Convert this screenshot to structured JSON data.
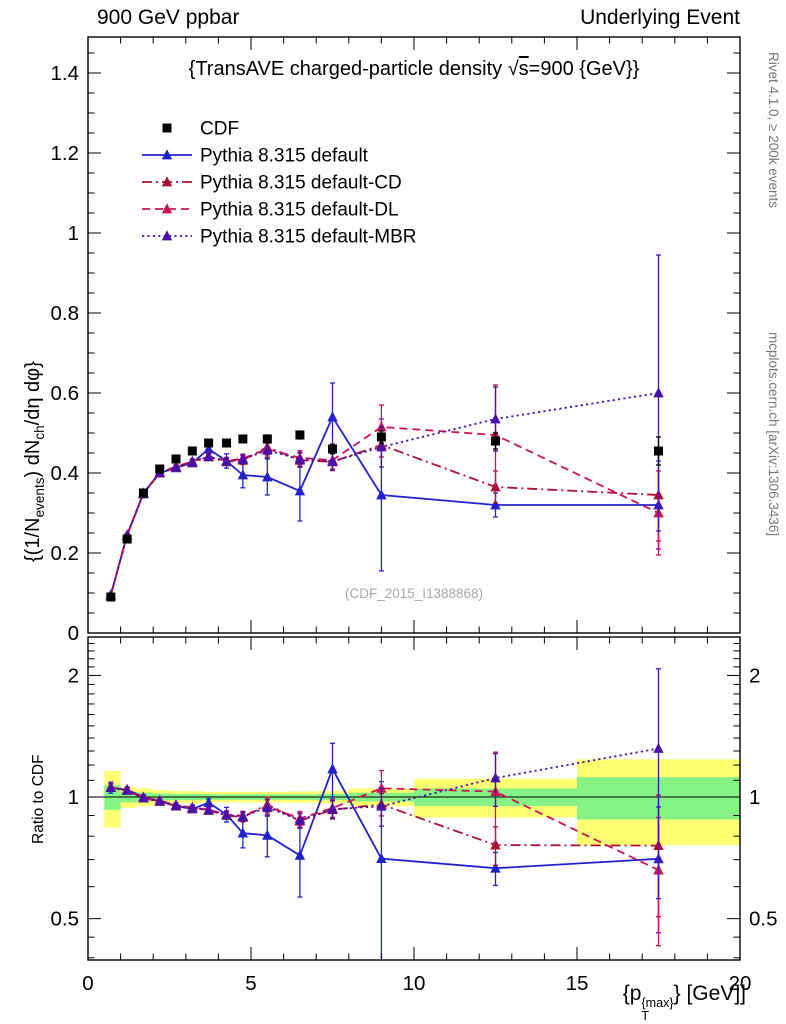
{
  "header": {
    "left": "900 GeV ppbar",
    "right": "Underlying Event"
  },
  "title": {
    "pre": "{TransAVE charged-particle density ",
    "sqrt": "√",
    "sqrt_arg": "s",
    "post": "=900 {GeV}}"
  },
  "y_axis_label": {
    "p1": "{(1/N",
    "sub1": "events",
    "p2": ") dN",
    "sub2": "ch",
    "p3": "/dη dφ}"
  },
  "x_axis_label": {
    "p1": "{p",
    "sub1": "T",
    "sup1": "{max}",
    "p2": "} [GeV]]"
  },
  "ratio_axis_label": "Ratio to CDF",
  "side_notes": {
    "top": "Rivet 4.1.0, ≥ 200k events",
    "bottom": "mcplots.cern.ch [arXiv:1306.3436]"
  },
  "watermark": "(CDF_2015_I1388868)",
  "chart_data": {
    "type": "line",
    "title": "{TransAVE charged-particle density √s=900 {GeV}}",
    "xlabel": "{p_T^{max}} [GeV]",
    "ylabel": "{(1/N_events) dN_ch/dη dφ}",
    "legend_position": "top-left-inside",
    "grid": false,
    "x": [
      0.7,
      1.2,
      1.7,
      2.2,
      2.7,
      3.2,
      3.7,
      4.25,
      4.75,
      5.5,
      6.5,
      7.5,
      9,
      12.5,
      17.5
    ],
    "xlim": [
      0,
      20
    ],
    "main_ylim": [
      0,
      1.49
    ],
    "ratio_ylim": [
      0.395,
      2.49
    ],
    "x_ticks": {
      "major": [
        0,
        5,
        10,
        15,
        20
      ],
      "labels": [
        "0",
        "5",
        "10",
        "15",
        "20"
      ],
      "minor_step": 1
    },
    "y_ticks": {
      "major": [
        0,
        0.2,
        0.4,
        0.6,
        0.8,
        1.0,
        1.2,
        1.4
      ],
      "labels": [
        "0",
        "0.2",
        "0.4",
        "0.6",
        "0.8",
        "1",
        "1.2",
        "1.4"
      ],
      "minor_step": 0.05
    },
    "ratio_ticks": {
      "major": [
        0.5,
        1,
        2
      ],
      "labels": [
        "0.5",
        "1",
        "2"
      ],
      "minors": [
        0.4,
        0.45,
        0.6,
        0.7,
        0.8,
        0.9,
        1.1,
        1.2,
        1.3,
        1.4,
        1.5,
        1.6,
        1.7,
        1.8,
        1.9,
        2.1,
        2.2,
        2.3,
        2.4
      ]
    },
    "reference": {
      "name": "CDF",
      "color": "#000000",
      "marker": "square",
      "values": [
        0.09,
        0.235,
        0.35,
        0.41,
        0.435,
        0.455,
        0.475,
        0.475,
        0.485,
        0.485,
        0.495,
        0.46,
        0.49,
        0.48,
        0.455
      ],
      "errors": [
        0.005,
        0.006,
        0.007,
        0.008,
        0.008,
        0.008,
        0.009,
        0.009,
        0.009,
        0.01,
        0.01,
        0.012,
        0.015,
        0.02,
        0.035
      ]
    },
    "series": [
      {
        "name": "Pythia 8.315 default",
        "color": "#2222cc",
        "dash": "solid",
        "values": [
          0.095,
          0.245,
          0.35,
          0.4,
          0.413,
          0.425,
          0.46,
          0.43,
          0.395,
          0.39,
          0.355,
          0.54,
          0.345,
          0.32,
          0.32
        ],
        "errors": [
          0.003,
          0.004,
          0.005,
          0.005,
          0.006,
          0.007,
          0.01,
          0.018,
          0.032,
          0.045,
          0.075,
          0.085,
          0.19,
          0.03,
          0.11
        ]
      },
      {
        "name": "Pythia 8.315 default-CD",
        "color": "#aa1133",
        "dash": "dashdot",
        "values": [
          0.095,
          0.244,
          0.348,
          0.4,
          0.414,
          0.427,
          0.44,
          0.428,
          0.432,
          0.465,
          0.432,
          0.428,
          0.47,
          0.365,
          0.345
        ],
        "errors": [
          0.002,
          0.003,
          0.004,
          0.004,
          0.005,
          0.006,
          0.007,
          0.009,
          0.011,
          0.02,
          0.018,
          0.022,
          0.03,
          0.04,
          0.115
        ]
      },
      {
        "name": "Pythia 8.315 default-DL",
        "color": "#cc1155",
        "dash": "dashed",
        "values": [
          0.095,
          0.245,
          0.349,
          0.402,
          0.416,
          0.429,
          0.442,
          0.43,
          0.436,
          0.46,
          0.438,
          0.432,
          0.515,
          0.495,
          0.3
        ],
        "errors": [
          0.002,
          0.003,
          0.004,
          0.004,
          0.005,
          0.006,
          0.007,
          0.009,
          0.011,
          0.02,
          0.018,
          0.022,
          0.055,
          0.125,
          0.105
        ]
      },
      {
        "name": "Pythia 8.315 default-MBR",
        "color": "#4a11aa",
        "dash": "dotted",
        "values": [
          0.095,
          0.244,
          0.348,
          0.401,
          0.415,
          0.428,
          0.441,
          0.429,
          0.434,
          0.457,
          0.434,
          0.429,
          0.465,
          0.535,
          0.6
        ],
        "errors": [
          0.002,
          0.003,
          0.004,
          0.004,
          0.005,
          0.006,
          0.007,
          0.009,
          0.011,
          0.02,
          0.018,
          0.022,
          0.05,
          0.08,
          0.345
        ]
      }
    ],
    "ratio_bands": {
      "edges": [
        0.5,
        1,
        1.5,
        2,
        2.5,
        3,
        3.5,
        4,
        4.5,
        5,
        6,
        7,
        8,
        10,
        15,
        20
      ],
      "yellow": [
        0.16,
        0.06,
        0.05,
        0.04,
        0.035,
        0.035,
        0.03,
        0.03,
        0.03,
        0.03,
        0.032,
        0.035,
        0.05,
        0.11,
        0.24
      ],
      "green": [
        0.07,
        0.03,
        0.025,
        0.02,
        0.018,
        0.018,
        0.016,
        0.016,
        0.016,
        0.016,
        0.016,
        0.018,
        0.025,
        0.05,
        0.12
      ],
      "yellow_color": "#ffff73",
      "green_color": "#85f485"
    }
  }
}
